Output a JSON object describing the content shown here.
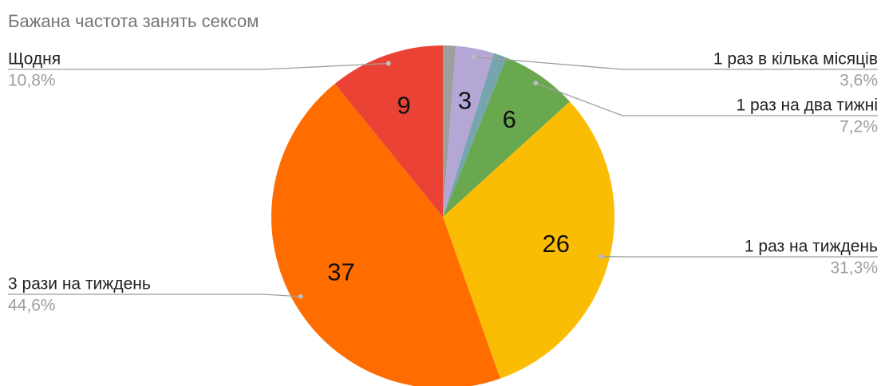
{
  "chart_data": {
    "type": "pie",
    "title": "Бажана частота занять сексом",
    "categories": [
      null,
      "1 раз в кілька місяців",
      null,
      "1 раз на два тижні",
      "1 раз на тиждень",
      "3 рази на тиждень",
      "Щодня"
    ],
    "values": [
      1,
      3,
      1,
      6,
      26,
      37,
      9
    ],
    "percent_labels": [
      null,
      "3,6%",
      null,
      "7,2%",
      "31,3%",
      "44,6%",
      "10,8%"
    ],
    "colors": [
      "#9e9e9e",
      "#b4a7d6",
      "#76a5af",
      "#6aa84f",
      "#fbbc04",
      "#ff6d01",
      "#ea4335"
    ]
  }
}
